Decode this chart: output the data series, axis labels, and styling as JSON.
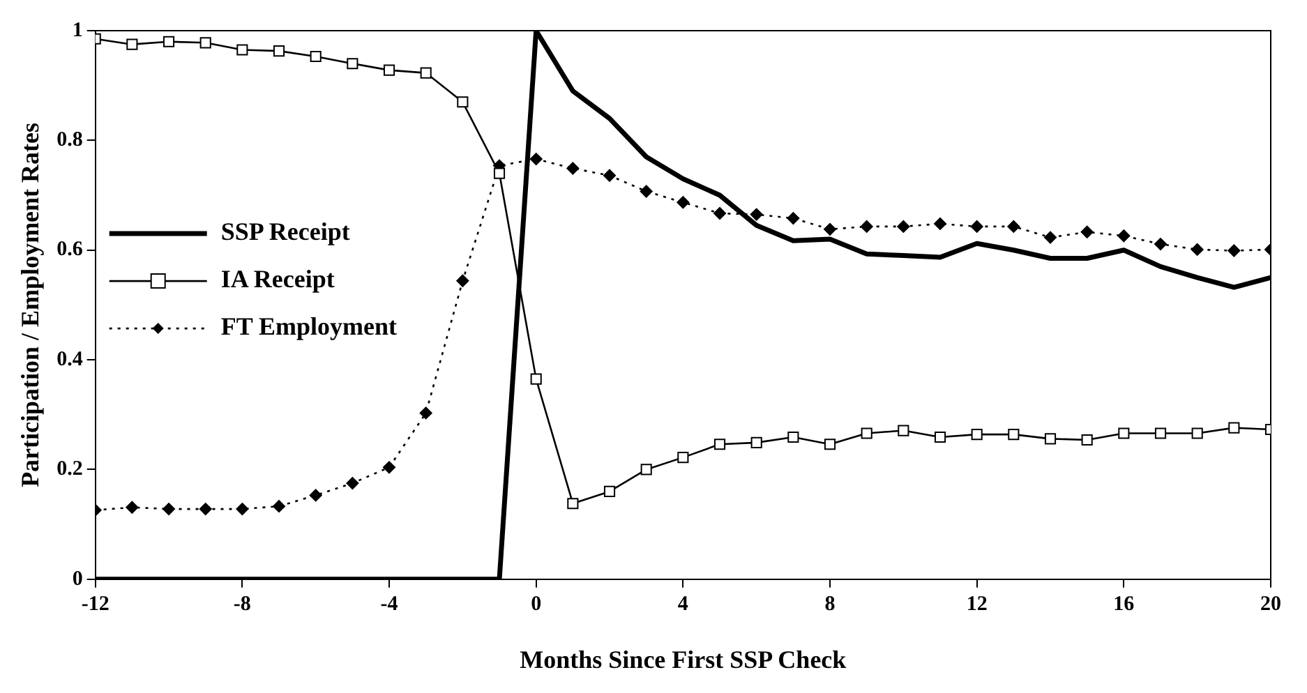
{
  "chart_data": {
    "type": "line",
    "xlabel": "Months Since First SSP Check",
    "ylabel": "Participation / Employment Rates",
    "x": [
      -12,
      -11,
      -10,
      -9,
      -8,
      -7,
      -6,
      -5,
      -4,
      -3,
      -2,
      -1,
      0,
      1,
      2,
      3,
      4,
      5,
      6,
      7,
      8,
      9,
      10,
      11,
      12,
      13,
      14,
      15,
      16,
      17,
      18,
      19,
      20
    ],
    "xlim": [
      -12,
      20
    ],
    "xticks": [
      -12,
      -8,
      -4,
      0,
      4,
      8,
      12,
      16,
      20
    ],
    "ylim": [
      0,
      1
    ],
    "yticks": [
      0,
      0.2,
      0.4,
      0.6,
      0.8,
      1
    ],
    "grid": false,
    "legend": "left",
    "series": [
      {
        "name": "SSP Receipt",
        "color": "#000000",
        "marker": "none",
        "line_style": "solid",
        "values": [
          0,
          0,
          0,
          0,
          0,
          0,
          0,
          0,
          0,
          0,
          0,
          0,
          1.0,
          0.89,
          0.84,
          0.77,
          0.73,
          0.7,
          0.645,
          0.617,
          0.62,
          0.593,
          0.59,
          0.587,
          0.612,
          0.6,
          0.585,
          0.585,
          0.6,
          0.57,
          0.55,
          0.532,
          0.55
        ]
      },
      {
        "name": "IA Receipt",
        "color": "#000000",
        "marker": "square",
        "line_style": "solid",
        "values": [
          0.985,
          0.975,
          0.98,
          0.978,
          0.965,
          0.963,
          0.953,
          0.94,
          0.928,
          0.923,
          0.87,
          0.74,
          0.365,
          0.138,
          0.16,
          0.2,
          0.222,
          0.246,
          0.249,
          0.259,
          0.246,
          0.266,
          0.271,
          0.259,
          0.264,
          0.264,
          0.256,
          0.254,
          0.266,
          0.266,
          0.266,
          0.276,
          0.273
        ]
      },
      {
        "name": "FT Employment",
        "color": "#000000",
        "marker": "diamond",
        "line_style": "dotted",
        "values": [
          0.126,
          0.131,
          0.128,
          0.128,
          0.128,
          0.133,
          0.153,
          0.175,
          0.204,
          0.303,
          0.544,
          0.754,
          0.766,
          0.749,
          0.736,
          0.707,
          0.687,
          0.667,
          0.665,
          0.658,
          0.638,
          0.643,
          0.643,
          0.648,
          0.643,
          0.643,
          0.623,
          0.633,
          0.626,
          0.611,
          0.601,
          0.599,
          0.601
        ]
      }
    ]
  }
}
